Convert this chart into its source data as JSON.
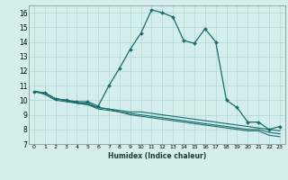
{
  "xlabel": "Humidex (Indice chaleur)",
  "bg_color": "#d4eeee",
  "line_color": "#1a6b6b",
  "grid_color": "#b8d8d8",
  "xlim": [
    -0.5,
    23.5
  ],
  "ylim": [
    7,
    16.5
  ],
  "xticks": [
    0,
    1,
    2,
    3,
    4,
    5,
    6,
    7,
    8,
    9,
    10,
    11,
    12,
    13,
    14,
    15,
    16,
    17,
    18,
    19,
    20,
    21,
    22,
    23
  ],
  "yticks": [
    7,
    8,
    9,
    10,
    11,
    12,
    13,
    14,
    15,
    16
  ],
  "series1_x": [
    0,
    1,
    2,
    3,
    4,
    5,
    6,
    7,
    8,
    9,
    10,
    11,
    12,
    13,
    14,
    15,
    16,
    17,
    18,
    19,
    20,
    21,
    22,
    23
  ],
  "series1_y": [
    10.6,
    10.5,
    10.1,
    10.0,
    9.9,
    9.9,
    9.6,
    11.0,
    12.2,
    13.5,
    14.6,
    16.2,
    16.0,
    15.7,
    14.1,
    13.9,
    14.9,
    14.0,
    10.0,
    9.5,
    8.5,
    8.5,
    8.0,
    8.2
  ],
  "series2_x": [
    0,
    1,
    2,
    3,
    4,
    5,
    6,
    7,
    8,
    9,
    10,
    11,
    12,
    13,
    14,
    15,
    16,
    17,
    18,
    19,
    20,
    21,
    22,
    23
  ],
  "series2_y": [
    10.6,
    10.5,
    10.1,
    10.0,
    9.8,
    9.8,
    9.5,
    9.4,
    9.3,
    9.2,
    9.2,
    9.1,
    9.0,
    8.9,
    8.8,
    8.7,
    8.6,
    8.5,
    8.4,
    8.3,
    8.2,
    8.1,
    8.0,
    7.9
  ],
  "series3_x": [
    0,
    1,
    2,
    3,
    4,
    5,
    6,
    7,
    8,
    9,
    10,
    11,
    12,
    13,
    14,
    15,
    16,
    17,
    18,
    19,
    20,
    21,
    22,
    23
  ],
  "series3_y": [
    10.6,
    10.5,
    10.1,
    10.0,
    9.8,
    9.7,
    9.5,
    9.4,
    9.2,
    9.1,
    9.0,
    8.9,
    8.8,
    8.7,
    8.6,
    8.5,
    8.4,
    8.3,
    8.2,
    8.1,
    8.0,
    8.0,
    7.8,
    7.7
  ],
  "series4_x": [
    0,
    1,
    2,
    3,
    4,
    5,
    6,
    7,
    8,
    9,
    10,
    11,
    12,
    13,
    14,
    15,
    16,
    17,
    18,
    19,
    20,
    21,
    22,
    23
  ],
  "series4_y": [
    10.6,
    10.4,
    10.0,
    9.9,
    9.8,
    9.7,
    9.4,
    9.3,
    9.2,
    9.0,
    8.9,
    8.8,
    8.7,
    8.6,
    8.5,
    8.4,
    8.3,
    8.2,
    8.1,
    8.0,
    7.9,
    7.9,
    7.6,
    7.5
  ]
}
